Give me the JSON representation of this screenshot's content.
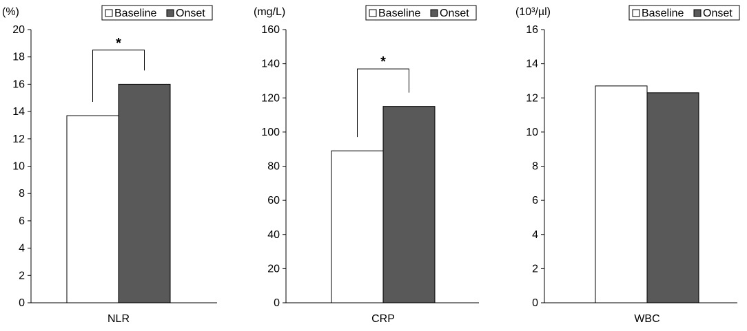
{
  "colors": {
    "baseline_fill": "#ffffff",
    "onset_fill": "#595959",
    "stroke": "#000000"
  },
  "chart_data": [
    {
      "type": "bar",
      "unit_label": "(%)",
      "categories": [
        "NLR"
      ],
      "series": [
        {
          "name": "Baseline",
          "values": [
            13.7
          ]
        },
        {
          "name": "Onset",
          "values": [
            16.0
          ]
        }
      ],
      "ylim": [
        0,
        20
      ],
      "yticks": [
        0,
        2,
        4,
        6,
        8,
        10,
        12,
        14,
        16,
        18,
        20
      ],
      "legend": [
        "Baseline",
        "Onset"
      ],
      "legend_position": "top-right",
      "significance": {
        "marker": "*",
        "bracket_top": 18.5
      }
    },
    {
      "type": "bar",
      "unit_label": "(mg/L)",
      "categories": [
        "CRP"
      ],
      "series": [
        {
          "name": "Baseline",
          "values": [
            89
          ]
        },
        {
          "name": "Onset",
          "values": [
            115
          ]
        }
      ],
      "ylim": [
        0,
        160
      ],
      "yticks": [
        0,
        20,
        40,
        60,
        80,
        100,
        120,
        140,
        160
      ],
      "legend": [
        "Baseline",
        "Onset"
      ],
      "legend_position": "top-right",
      "significance": {
        "marker": "*",
        "bracket_top": 137
      }
    },
    {
      "type": "bar",
      "unit_label": "(10³/µl)",
      "categories": [
        "WBC"
      ],
      "series": [
        {
          "name": "Baseline",
          "values": [
            12.7
          ]
        },
        {
          "name": "Onset",
          "values": [
            12.3
          ]
        }
      ],
      "ylim": [
        0,
        16
      ],
      "yticks": [
        0,
        2,
        4,
        6,
        8,
        10,
        12,
        14,
        16
      ],
      "legend": [
        "Baseline",
        "Onset"
      ],
      "legend_position": "top-right",
      "significance": null
    }
  ]
}
